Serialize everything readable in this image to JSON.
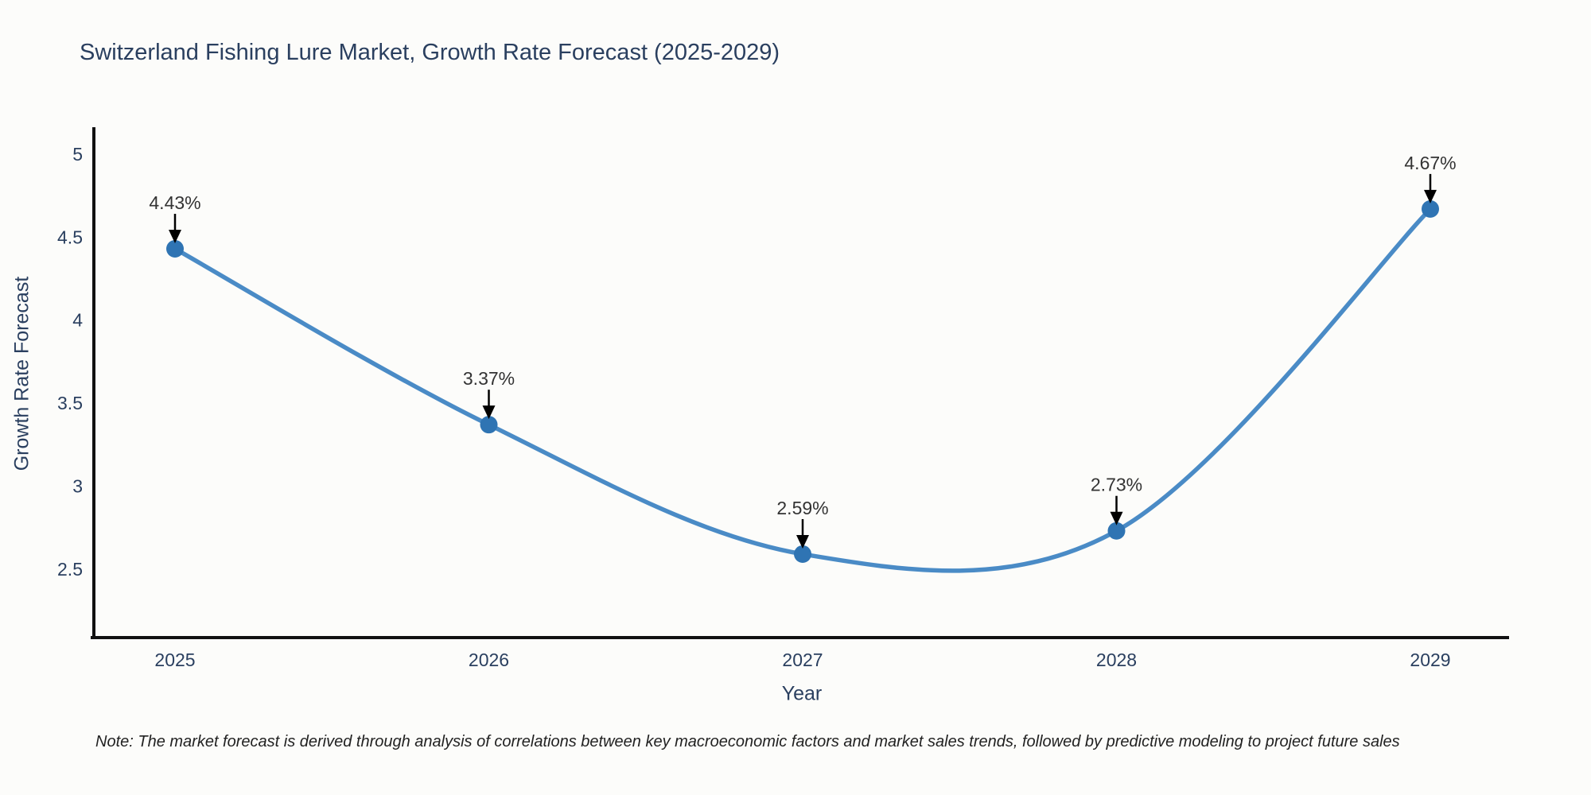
{
  "note": "Note: The market forecast is derived through analysis of correlations between key macroeconomic factors and market sales trends, followed by predictive modeling to project future sales",
  "chart_data": {
    "type": "line",
    "curve": "spline",
    "title": "Switzerland Fishing Lure Market, Growth Rate Forecast (2025-2029)",
    "xlabel": "Year",
    "ylabel": "Growth Rate Forecast",
    "x": [
      2025,
      2026,
      2027,
      2028,
      2029
    ],
    "x_tick_labels": [
      "2025",
      "2026",
      "2027",
      "2028",
      "2029"
    ],
    "values": [
      4.43,
      3.37,
      2.59,
      2.73,
      4.67
    ],
    "point_labels": [
      "4.43%",
      "3.37%",
      "2.59%",
      "2.73%",
      "4.67%"
    ],
    "y_ticks": [
      5,
      4.5,
      4,
      3.5,
      3,
      2.5
    ],
    "y_tick_labels": [
      "5",
      "4.5",
      "4",
      "3.5",
      "3",
      "2.5"
    ],
    "ylim": [
      2.09,
      5.16
    ],
    "grid": false,
    "legend": "none",
    "colors": {
      "line": "#4a8bc6",
      "marker": "#2f74b3",
      "axis": "#111111",
      "tick_text": "#2a3f5f",
      "annotation_text": "#333333",
      "arrow": "#000000",
      "background": "#fcfcfa"
    }
  }
}
